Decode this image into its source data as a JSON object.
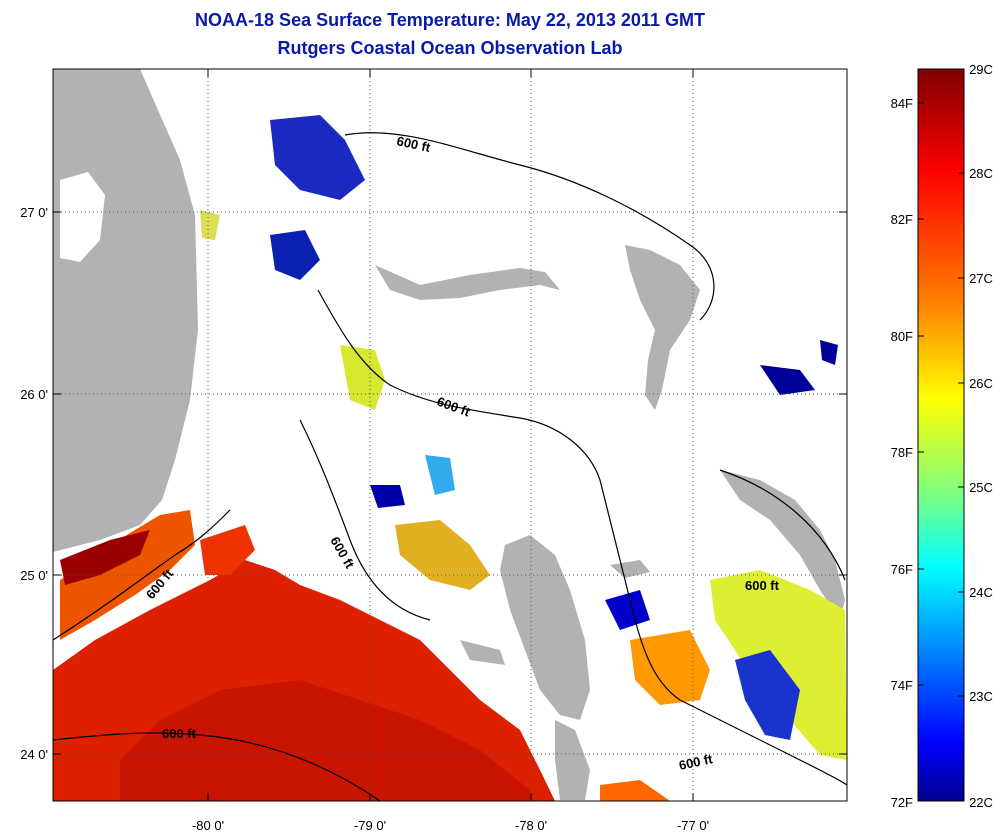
{
  "title": "NOAA-18 Sea Surface Temperature:  May 22, 2013 2011 GMT",
  "subtitle": "Rutgers Coastal Ocean Observation Lab",
  "map": {
    "lon_ticks": [
      "-80 0'",
      "-79 0'",
      "-78 0'",
      "-77 0'"
    ],
    "lat_ticks": [
      "27 0'",
      "26 0'",
      "25 0'",
      "24 0'"
    ],
    "contour_label": "600 ft",
    "colors": {
      "land": "#b2b2b2",
      "no_data": "#ffffff"
    }
  },
  "colorbar": {
    "celsius": [
      "29C",
      "28C",
      "27C",
      "26C",
      "25C",
      "24C",
      "23C",
      "22C"
    ],
    "fahrenheit": [
      "84F",
      "82F",
      "80F",
      "78F",
      "76F",
      "74F",
      "72F"
    ],
    "gradient": [
      "#7f0000",
      "#ff0000",
      "#ff8000",
      "#ffff00",
      "#80ff80",
      "#00ffff",
      "#0080ff",
      "#0000ff",
      "#00008f"
    ]
  }
}
